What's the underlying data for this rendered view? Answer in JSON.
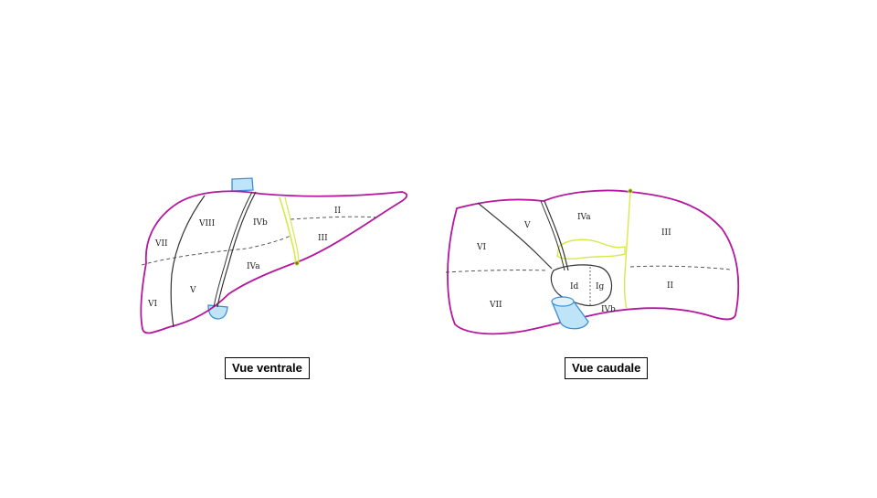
{
  "captions": {
    "ventral": "Vue ventrale",
    "caudal": "Vue caudale"
  },
  "colors": {
    "liver_outline": "#b5179e",
    "vessel_blue": "#3a8fd6",
    "ligament_yellow": "#d8e84a",
    "segment_line": "#333333"
  },
  "ventral_view": {
    "segments": [
      "VII",
      "VIII",
      "IVb",
      "II",
      "III",
      "IVa",
      "V",
      "VI"
    ]
  },
  "caudal_view": {
    "segments": [
      "V",
      "IVa",
      "III",
      "VI",
      "VII",
      "Id",
      "Ig",
      "IVb",
      "II"
    ]
  }
}
